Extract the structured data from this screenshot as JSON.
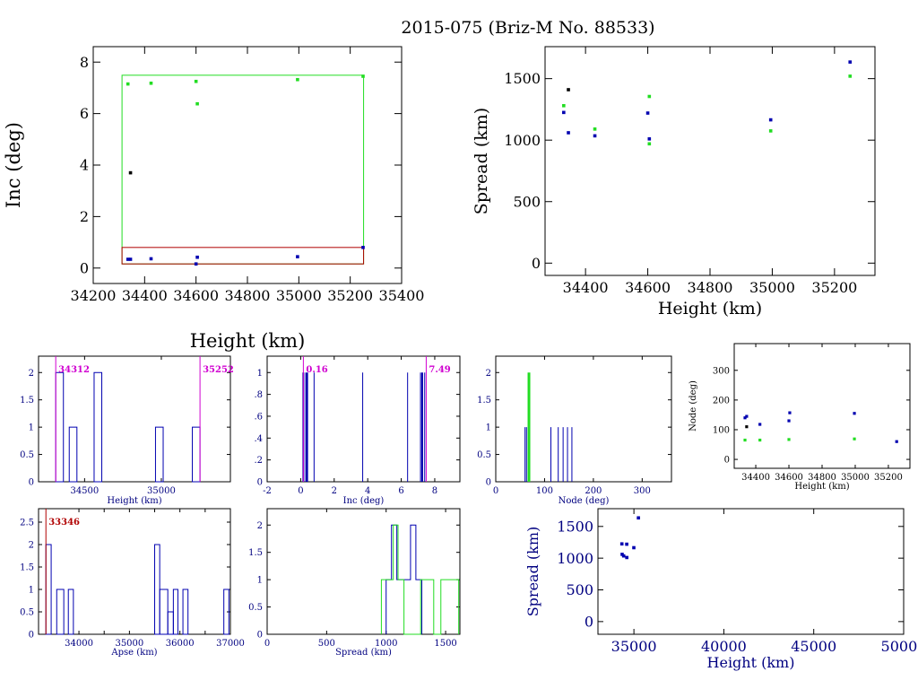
{
  "page_title": "2015-075 (Briz-M No. 88533)",
  "colors": {
    "axis": "#000000",
    "blue": "#0000b0",
    "green": "#22dd22",
    "red": "#b00000",
    "magenta": "#d000d0",
    "black": "#000000"
  },
  "chart_data": [
    {
      "id": "inc-vs-height",
      "type": "scatter",
      "xlabel": "Height (km)",
      "ylabel": "Inc (deg)",
      "xlim": [
        34200,
        35400
      ],
      "ylim": [
        -0.6,
        8.6
      ],
      "xticks": [
        34200,
        34400,
        34600,
        34800,
        35000,
        35200,
        35400
      ],
      "yticks": [
        0,
        2,
        4,
        6,
        8
      ],
      "boxes": [
        {
          "color": "green",
          "x": [
            34312,
            35252
          ],
          "y": [
            0.16,
            7.49
          ]
        },
        {
          "color": "red",
          "x": [
            34312,
            35252
          ],
          "y": [
            0.16,
            0.8
          ]
        }
      ],
      "series": [
        {
          "color": "green",
          "points": [
            [
              34335,
              7.15
            ],
            [
              34425,
              7.18
            ],
            [
              34600,
              7.25
            ],
            [
              34605,
              6.38
            ],
            [
              34995,
              7.32
            ],
            [
              35250,
              7.45
            ]
          ]
        },
        {
          "color": "blue",
          "points": [
            [
              34335,
              0.34
            ],
            [
              34345,
              0.34
            ],
            [
              34425,
              0.36
            ],
            [
              34605,
              0.42
            ],
            [
              34600,
              0.16
            ],
            [
              34995,
              0.44
            ],
            [
              35250,
              0.8
            ]
          ]
        },
        {
          "color": "black",
          "points": [
            [
              34345,
              3.7
            ]
          ]
        }
      ]
    },
    {
      "id": "spread-vs-height",
      "type": "scatter",
      "xlabel": "Height (km)",
      "ylabel": "Spread (km)",
      "xlim": [
        34270,
        35330
      ],
      "ylim": [
        -100,
        1760
      ],
      "xticks": [
        34400,
        34600,
        34800,
        35000,
        35200
      ],
      "yticks": [
        0,
        500,
        1000,
        1500
      ],
      "series": [
        {
          "color": "green",
          "points": [
            [
              34330,
              1280
            ],
            [
              34430,
              1090
            ],
            [
              34605,
              1355
            ],
            [
              34605,
              970
            ],
            [
              34995,
              1075
            ],
            [
              35250,
              1520
            ]
          ]
        },
        {
          "color": "blue",
          "points": [
            [
              34330,
              1225
            ],
            [
              34345,
              1060
            ],
            [
              34430,
              1035
            ],
            [
              34600,
              1220
            ],
            [
              34605,
              1010
            ],
            [
              34995,
              1165
            ],
            [
              35250,
              1635
            ]
          ]
        },
        {
          "color": "black",
          "points": [
            [
              34345,
              1410
            ]
          ]
        }
      ]
    },
    {
      "id": "height-hist",
      "type": "histogram",
      "xlabel": "Height (km)",
      "xlim": [
        34200,
        35450
      ],
      "ylim": [
        0,
        2.3
      ],
      "xticks": [
        34500,
        35000
      ],
      "yticks": [
        0,
        0.5,
        1,
        1.5,
        2
      ],
      "ytick_labels": [
        "0",
        "0.5",
        "1",
        "1.5",
        "2"
      ],
      "bars": [
        {
          "color": "blue",
          "x0": 34312,
          "x1": 34362,
          "y": 2
        },
        {
          "color": "blue",
          "x0": 34400,
          "x1": 34450,
          "y": 1
        },
        {
          "color": "blue",
          "x0": 34562,
          "x1": 34612,
          "y": 2
        },
        {
          "color": "blue",
          "x0": 34962,
          "x1": 35012,
          "y": 1
        },
        {
          "color": "blue",
          "x0": 35202,
          "x1": 35252,
          "y": 1
        }
      ],
      "markers": [
        {
          "color": "magenta",
          "x": 34312,
          "label": "34312",
          "side": "right"
        },
        {
          "color": "magenta",
          "x": 35252,
          "label": "35252",
          "side": "right"
        }
      ]
    },
    {
      "id": "inc-hist",
      "type": "histogram",
      "xlabel": "Inc (deg)",
      "xlim": [
        -2,
        9.5
      ],
      "ylim": [
        0,
        1.15
      ],
      "xticks": [
        -2,
        0,
        2,
        4,
        6,
        8
      ],
      "yticks": [
        0,
        0.2,
        0.4,
        0.6,
        0.8,
        1
      ],
      "ytick_labels": [
        "0",
        ".2",
        ".4",
        ".6",
        ".8",
        "1"
      ],
      "spikes": [
        {
          "color": "blue",
          "x": 0.16,
          "y": 1,
          "w": 2
        },
        {
          "color": "blue",
          "x": 0.36,
          "y": 1,
          "w": 3
        },
        {
          "color": "blue",
          "x": 0.8,
          "y": 1,
          "w": 1
        },
        {
          "color": "blue",
          "x": 3.7,
          "y": 1,
          "w": 1
        },
        {
          "color": "blue",
          "x": 6.38,
          "y": 1,
          "w": 1
        },
        {
          "color": "blue",
          "x": 7.15,
          "y": 1,
          "w": 1
        },
        {
          "color": "blue",
          "x": 7.25,
          "y": 1,
          "w": 2
        },
        {
          "color": "blue",
          "x": 7.4,
          "y": 1,
          "w": 1
        }
      ],
      "markers": [
        {
          "color": "magenta",
          "x": 0.16,
          "label": "0.16",
          "side": "right"
        },
        {
          "color": "magenta",
          "x": 7.49,
          "label": "7.49",
          "side": "right"
        }
      ]
    },
    {
      "id": "node-hist",
      "type": "histogram",
      "xlabel": "Node (deg)",
      "xlim": [
        0,
        360
      ],
      "ylim": [
        0,
        2.3
      ],
      "xticks": [
        0,
        100,
        200,
        300
      ],
      "yticks": [
        0,
        0.5,
        1,
        1.5,
        2
      ],
      "ytick_labels": [
        "0",
        "0.5",
        "1",
        "1.5",
        "2"
      ],
      "spikes": [
        {
          "color": "blue",
          "x": 60,
          "y": 1,
          "w": 1
        },
        {
          "color": "blue",
          "x": 63,
          "y": 1,
          "w": 1
        },
        {
          "color": "green",
          "x": 68,
          "y": 2,
          "w": 3
        },
        {
          "color": "blue",
          "x": 113,
          "y": 1,
          "w": 1
        },
        {
          "color": "blue",
          "x": 128,
          "y": 1,
          "w": 1
        },
        {
          "color": "blue",
          "x": 138,
          "y": 1,
          "w": 1
        },
        {
          "color": "blue",
          "x": 147,
          "y": 1,
          "w": 1
        },
        {
          "color": "blue",
          "x": 156,
          "y": 1,
          "w": 1
        }
      ],
      "markers": []
    },
    {
      "id": "node-vs-height",
      "type": "scatter",
      "xlabel": "Height (km)",
      "ylabel": "Node (deg)",
      "xlim": [
        34270,
        35330
      ],
      "ylim": [
        -30,
        390
      ],
      "xticks": [
        34400,
        34600,
        34800,
        35000,
        35200
      ],
      "yticks": [
        0,
        100,
        200,
        300
      ],
      "series": [
        {
          "color": "green",
          "points": [
            [
              34335,
              65
            ],
            [
              34425,
              65
            ],
            [
              34600,
              67
            ],
            [
              34995,
              69
            ]
          ]
        },
        {
          "color": "blue",
          "points": [
            [
              34335,
              140
            ],
            [
              34345,
              145
            ],
            [
              34425,
              118
            ],
            [
              34600,
              130
            ],
            [
              34605,
              157
            ],
            [
              34995,
              155
            ],
            [
              35250,
              60
            ]
          ]
        },
        {
          "color": "black",
          "points": [
            [
              34345,
              110
            ]
          ]
        }
      ]
    },
    {
      "id": "apse-hist",
      "type": "histogram",
      "xlabel": "Apse (km)",
      "xlim": [
        33200,
        37000
      ],
      "ylim": [
        0,
        2.8
      ],
      "xticks": [
        34000,
        34500,
        35000,
        35500,
        36000,
        36500,
        37000
      ],
      "xtick_labels": [
        "34000",
        "",
        "35000",
        "",
        "36000",
        "",
        "37000"
      ],
      "yticks": [
        0,
        0.5,
        1,
        1.5,
        2,
        2.5
      ],
      "ytick_labels": [
        "0",
        "0.5",
        "1",
        "1.5",
        "2",
        "2.5"
      ],
      "bars": [
        {
          "color": "blue",
          "x0": 33346,
          "x1": 33450,
          "y": 2
        },
        {
          "color": "blue",
          "x0": 33450,
          "x1": 33560,
          "y": 0
        },
        {
          "color": "blue",
          "x0": 33560,
          "x1": 33700,
          "y": 1
        },
        {
          "color": "blue",
          "x0": 33790,
          "x1": 33890,
          "y": 1
        },
        {
          "color": "blue",
          "x0": 35500,
          "x1": 35600,
          "y": 2
        },
        {
          "color": "blue",
          "x0": 35600,
          "x1": 35760,
          "y": 1
        },
        {
          "color": "blue",
          "x0": 35760,
          "x1": 35870,
          "y": 0.5
        },
        {
          "color": "blue",
          "x0": 35870,
          "x1": 35960,
          "y": 1
        },
        {
          "color": "blue",
          "x0": 36060,
          "x1": 36160,
          "y": 1
        },
        {
          "color": "blue",
          "x0": 36870,
          "x1": 36970,
          "y": 1
        }
      ],
      "markers": [
        {
          "color": "red",
          "x": 33346,
          "label": "33346",
          "side": "right"
        }
      ]
    },
    {
      "id": "spread-hist",
      "type": "histogram",
      "xlabel": "Spread (km)",
      "xlim": [
        0,
        1620
      ],
      "ylim": [
        0,
        2.3
      ],
      "xticks": [
        0,
        500,
        1000,
        1500
      ],
      "yticks": [
        0,
        0.5,
        1,
        1.5,
        2
      ],
      "ytick_labels": [
        "0",
        "0.5",
        "1",
        "1.5",
        "2"
      ],
      "steps": [
        {
          "color": "blue",
          "edges": [
            1000,
            1045,
            1090,
            1160,
            1205,
            1250,
            1300
          ],
          "counts": [
            1,
            2,
            1,
            1,
            2,
            1
          ]
        },
        {
          "color": "green",
          "edges": [
            960,
            1000,
            1060,
            1100,
            1150,
            1290,
            1340,
            1400,
            1460,
            1510,
            1560,
            1610
          ],
          "counts": [
            1,
            1,
            2,
            1,
            0,
            1,
            1,
            0,
            1,
            1,
            1
          ]
        }
      ],
      "markers": []
    },
    {
      "id": "spread-vs-height-wide",
      "type": "scatter",
      "xlabel": "Height (km)",
      "ylabel": "Spread (km)",
      "xlim": [
        33000,
        50000
      ],
      "ylim": [
        -200,
        1780
      ],
      "xticks": [
        35000,
        40000,
        45000,
        50000
      ],
      "yticks": [
        0,
        500,
        1000,
        1500
      ],
      "series": [
        {
          "color": "blue",
          "points": [
            [
              34330,
              1225
            ],
            [
              34345,
              1060
            ],
            [
              34430,
              1035
            ],
            [
              34600,
              1220
            ],
            [
              34605,
              1010
            ],
            [
              34995,
              1165
            ],
            [
              35250,
              1635
            ]
          ]
        }
      ]
    }
  ]
}
